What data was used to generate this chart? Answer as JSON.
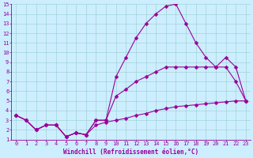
{
  "bg_color": "#cceeff",
  "line_color": "#990099",
  "marker": "D",
  "marker_size": 2.5,
  "line_width": 0.8,
  "xlabel": "Windchill (Refroidissement éolien,°C)",
  "xlabel_fontsize": 5.5,
  "xlim": [
    -0.5,
    23.5
  ],
  "ylim": [
    1,
    15
  ],
  "xticks": [
    0,
    1,
    2,
    3,
    4,
    5,
    6,
    7,
    8,
    9,
    10,
    11,
    12,
    13,
    14,
    15,
    16,
    17,
    18,
    19,
    20,
    21,
    22,
    23
  ],
  "yticks": [
    1,
    2,
    3,
    4,
    5,
    6,
    7,
    8,
    9,
    10,
    11,
    12,
    13,
    14,
    15
  ],
  "series1_x": [
    0,
    1,
    2,
    3,
    4,
    5,
    6,
    7,
    8,
    9,
    10,
    11,
    12,
    13,
    14,
    15,
    16,
    17,
    18,
    19,
    20,
    21,
    22,
    23
  ],
  "series1_y": [
    3.5,
    3.0,
    2.0,
    2.5,
    2.5,
    1.3,
    1.7,
    1.5,
    3.0,
    3.0,
    7.5,
    9.5,
    11.5,
    13.0,
    14.0,
    14.8,
    15.0,
    13.0,
    11.0,
    9.5,
    8.5,
    8.5,
    7.0,
    5.0
  ],
  "series2_x": [
    0,
    1,
    2,
    3,
    4,
    5,
    6,
    7,
    8,
    9,
    10,
    11,
    12,
    13,
    14,
    15,
    16,
    17,
    18,
    19,
    20,
    21,
    22,
    23
  ],
  "series2_y": [
    3.5,
    3.0,
    2.0,
    2.5,
    2.5,
    1.3,
    1.7,
    1.5,
    3.0,
    3.0,
    5.5,
    6.2,
    7.0,
    7.5,
    8.0,
    8.5,
    8.5,
    8.5,
    8.5,
    8.5,
    8.5,
    9.5,
    8.5,
    5.0
  ],
  "series3_x": [
    0,
    1,
    2,
    3,
    4,
    5,
    6,
    7,
    8,
    9,
    10,
    11,
    12,
    13,
    14,
    15,
    16,
    17,
    18,
    19,
    20,
    21,
    22,
    23
  ],
  "series3_y": [
    3.5,
    3.0,
    2.0,
    2.5,
    2.5,
    1.3,
    1.7,
    1.5,
    2.5,
    2.8,
    3.0,
    3.2,
    3.5,
    3.7,
    4.0,
    4.2,
    4.4,
    4.5,
    4.6,
    4.7,
    4.8,
    4.9,
    5.0,
    5.0
  ],
  "grid_color": "#99cccc",
  "tick_fontsize": 5.0,
  "tick_color": "#990099",
  "axis_color": "#990099",
  "label_color": "#990099"
}
